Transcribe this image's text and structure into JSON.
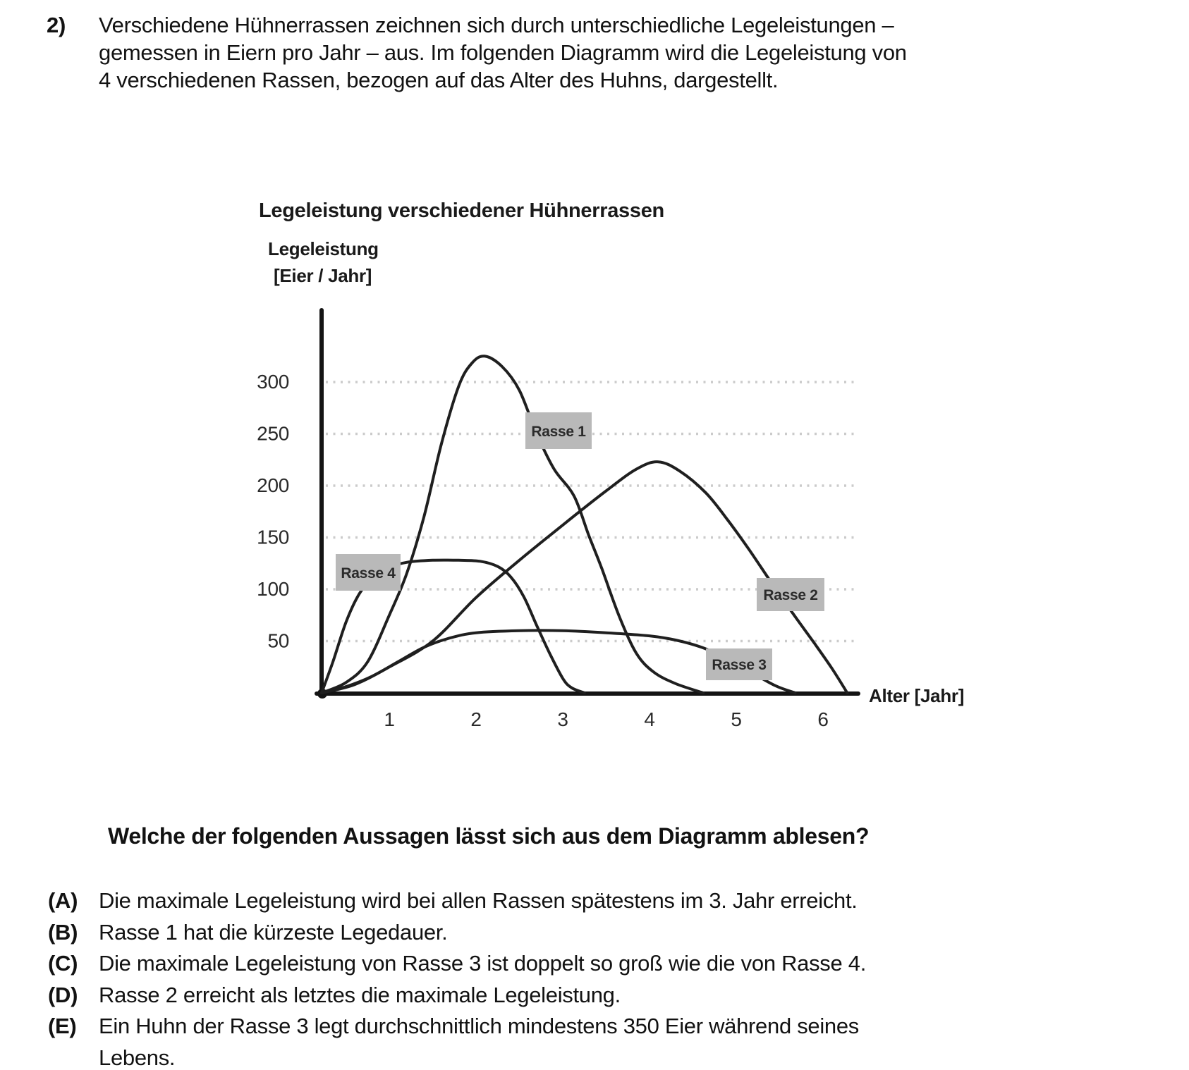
{
  "question": {
    "number": "2)",
    "lines": [
      "Verschiedene Hühnerrassen zeichnen sich durch unterschiedliche Legeleistungen –",
      "gemessen in Eiern pro Jahr – aus. Im folgenden Diagramm wird die Legeleistung von",
      "4 verschiedenen Rassen, bezogen auf das Alter des Huhns, dargestellt."
    ]
  },
  "chart": {
    "title": "Legeleistung verschiedener Hühnerrassen",
    "y_axis_label_line1": "Legeleistung",
    "y_axis_label_line2": "[Eier / Jahr]",
    "x_axis_label": "Alter [Jahr]",
    "y_ticks": [
      "300",
      "250",
      "200",
      "150",
      "100",
      "50"
    ],
    "x_ticks": [
      "1",
      "2",
      "3",
      "4",
      "5",
      "6"
    ],
    "series_labels": {
      "rasse1": "Rasse 1",
      "rasse2": "Rasse 2",
      "rasse3": "Rasse 3",
      "rasse4": "Rasse 4"
    }
  },
  "chart_data": {
    "type": "line",
    "title": "Legeleistung verschiedener Hühnerrassen",
    "xlabel": "Alter [Jahr]",
    "ylabel": "Legeleistung [Eier / Jahr]",
    "xlim": [
      0,
      6.6
    ],
    "ylim": [
      0,
      350
    ],
    "x_ticks": [
      1,
      2,
      3,
      4,
      5,
      6
    ],
    "y_ticks": [
      50,
      100,
      150,
      200,
      250,
      300
    ],
    "grid": "horizontal-dotted",
    "legend_position": "inline-boxed-labels",
    "series": [
      {
        "name": "Rasse 1",
        "points": [
          [
            0.22,
            0
          ],
          [
            0.5,
            10
          ],
          [
            0.75,
            30
          ],
          [
            1.0,
            75
          ],
          [
            1.2,
            115
          ],
          [
            1.4,
            170
          ],
          [
            1.6,
            240
          ],
          [
            1.8,
            296
          ],
          [
            1.95,
            318
          ],
          [
            2.1,
            325
          ],
          [
            2.3,
            315
          ],
          [
            2.5,
            292
          ],
          [
            2.7,
            250
          ],
          [
            2.9,
            216
          ],
          [
            3.13,
            190
          ],
          [
            3.3,
            152
          ],
          [
            3.45,
            120
          ],
          [
            3.65,
            74
          ],
          [
            3.85,
            38
          ],
          [
            4.05,
            20
          ],
          [
            4.3,
            9
          ],
          [
            4.62,
            0
          ]
        ]
      },
      {
        "name": "Rasse 2",
        "points": [
          [
            0.22,
            0
          ],
          [
            0.6,
            8
          ],
          [
            1.0,
            25
          ],
          [
            1.5,
            50
          ],
          [
            2.0,
            92
          ],
          [
            2.5,
            128
          ],
          [
            3.0,
            162
          ],
          [
            3.5,
            195
          ],
          [
            3.85,
            216
          ],
          [
            4.1,
            223
          ],
          [
            4.35,
            214
          ],
          [
            4.65,
            193
          ],
          [
            4.9,
            167
          ],
          [
            5.15,
            138
          ],
          [
            5.4,
            107
          ],
          [
            5.65,
            77
          ],
          [
            5.9,
            48
          ],
          [
            6.1,
            24
          ],
          [
            6.28,
            0
          ]
        ]
      },
      {
        "name": "Rasse 3",
        "points": [
          [
            0.22,
            0
          ],
          [
            0.5,
            6
          ],
          [
            0.8,
            16
          ],
          [
            1.1,
            30
          ],
          [
            1.4,
            44
          ],
          [
            1.7,
            53
          ],
          [
            2.0,
            58
          ],
          [
            2.5,
            60
          ],
          [
            3.0,
            60
          ],
          [
            3.5,
            58
          ],
          [
            4.0,
            55
          ],
          [
            4.3,
            51
          ],
          [
            4.6,
            44
          ],
          [
            4.9,
            33
          ],
          [
            5.15,
            21
          ],
          [
            5.45,
            7
          ],
          [
            5.68,
            0
          ]
        ]
      },
      {
        "name": "Rasse 4",
        "points": [
          [
            0.22,
            0
          ],
          [
            0.35,
            30
          ],
          [
            0.5,
            68
          ],
          [
            0.65,
            95
          ],
          [
            0.8,
            110
          ],
          [
            1.0,
            121
          ],
          [
            1.2,
            126
          ],
          [
            1.5,
            128
          ],
          [
            1.8,
            128
          ],
          [
            2.05,
            127
          ],
          [
            2.25,
            122
          ],
          [
            2.4,
            112
          ],
          [
            2.55,
            93
          ],
          [
            2.7,
            65
          ],
          [
            2.85,
            38
          ],
          [
            3.0,
            14
          ],
          [
            3.1,
            5
          ],
          [
            3.25,
            0
          ]
        ]
      }
    ]
  },
  "prompt": "Welche der folgenden Aussagen lässt sich aus dem Diagramm ablesen?",
  "options": [
    {
      "letter": "(A)",
      "text": "Die maximale Legeleistung wird bei allen Rassen spätestens im 3. Jahr erreicht."
    },
    {
      "letter": "(B)",
      "text": "Rasse 1 hat die kürzeste Legedauer."
    },
    {
      "letter": "(C)",
      "text": "Die maximale Legeleistung von Rasse 3 ist doppelt so groß wie die von Rasse 4."
    },
    {
      "letter": "(D)",
      "text": "Rasse 2 erreicht als letztes die maximale Legeleistung."
    },
    {
      "letter": "(E)",
      "text": "Ein Huhn der Rasse 3 legt durchschnittlich mindestens 350 Eier während seines",
      "text2": "Lebens."
    }
  ],
  "colors": {
    "curve": "#1f1f1f",
    "grid": "#cbcbcb",
    "label_box": "#b9b9b9",
    "text": "#121212"
  }
}
